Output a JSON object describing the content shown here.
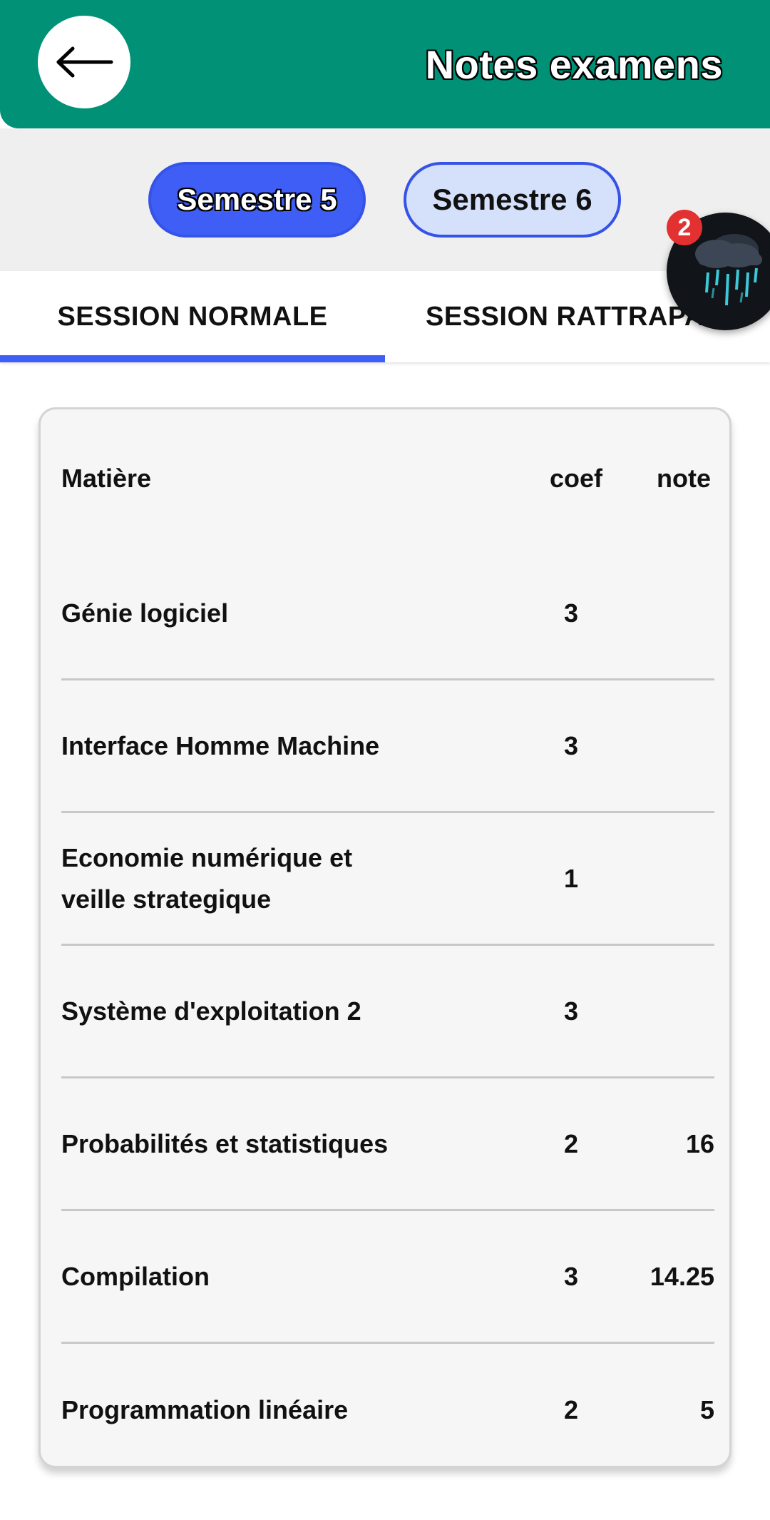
{
  "header": {
    "title": "Notes examens",
    "back_icon": "arrow-left-icon",
    "background_color": "#009177"
  },
  "semesters": {
    "items": [
      {
        "label": "Semestre 5",
        "active": true
      },
      {
        "label": "Semestre 6",
        "active": false
      }
    ],
    "active_color": "#3f5ef5"
  },
  "fab": {
    "icon": "rain-cloud-icon",
    "badge": "2"
  },
  "tabs": {
    "items": [
      {
        "label": "SESSION NORMALE",
        "active": true
      },
      {
        "label": "SESSION RATTRAPAGE",
        "active": false
      }
    ]
  },
  "table": {
    "headers": {
      "subject": "Matière",
      "coef": "coef",
      "note": "note"
    },
    "rows": [
      {
        "subject": "Génie logiciel",
        "coef": "3",
        "note": ""
      },
      {
        "subject": "Interface Homme Machine",
        "coef": "3",
        "note": ""
      },
      {
        "subject": "Economie numérique et veille strategique",
        "coef": "1",
        "note": ""
      },
      {
        "subject": "Système d'exploitation 2",
        "coef": "3",
        "note": ""
      },
      {
        "subject": "Probabilités et statistiques",
        "coef": "2",
        "note": "16"
      },
      {
        "subject": "Compilation",
        "coef": "3",
        "note": "14.25"
      },
      {
        "subject": "Programmation linéaire",
        "coef": "2",
        "note": "5"
      }
    ]
  }
}
